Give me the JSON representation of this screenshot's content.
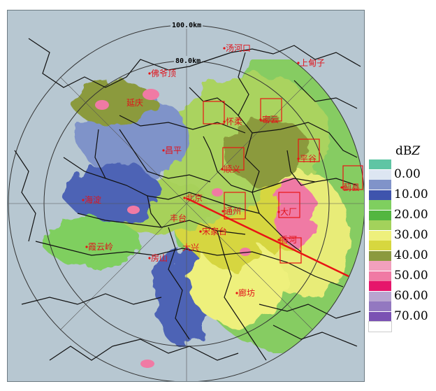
{
  "range_rings": {
    "label_100": "100.0km",
    "label_80": "80.0km"
  },
  "places": [
    {
      "name": "汤河口"
    },
    {
      "name": "上甸子"
    },
    {
      "name": "佛爷顶"
    },
    {
      "name": "延庆"
    },
    {
      "name": "怀柔"
    },
    {
      "name": "密云"
    },
    {
      "name": "顺义"
    },
    {
      "name": "平谷"
    },
    {
      "name": "昌平"
    },
    {
      "name": "蓟县"
    },
    {
      "name": "海淀"
    },
    {
      "name": "北京"
    },
    {
      "name": "通州"
    },
    {
      "name": "大厂"
    },
    {
      "name": "丰台"
    },
    {
      "name": "朝阳"
    },
    {
      "name": "霞云岭"
    },
    {
      "name": "宋家台"
    },
    {
      "name": "香河"
    },
    {
      "name": "房山"
    },
    {
      "name": "大兴"
    },
    {
      "name": "廊坊"
    }
  ],
  "legend": {
    "title_prefix": "dB",
    "title_unit": "Z",
    "entries": [
      {
        "color": "#5fc5a4",
        "label": ""
      },
      {
        "color": "#dde6f2",
        "label": "0.00"
      },
      {
        "color": "#8093c9",
        "label": ""
      },
      {
        "color": "#3f54ad",
        "label": "10.00"
      },
      {
        "color": "#7fcf5f",
        "label": ""
      },
      {
        "color": "#53b640",
        "label": "20.00"
      },
      {
        "color": "#a3d25b",
        "label": ""
      },
      {
        "color": "#eef07c",
        "label": "30.00"
      },
      {
        "color": "#d7d73f",
        "label": ""
      },
      {
        "color": "#8b9a3e",
        "label": "40.00"
      },
      {
        "color": "#f2a0bd",
        "label": ""
      },
      {
        "color": "#f07aa4",
        "label": "50.00"
      },
      {
        "color": "#e6156b",
        "label": ""
      },
      {
        "color": "#b8a5d0",
        "label": "60.00"
      },
      {
        "color": "#9378c0",
        "label": ""
      },
      {
        "color": "#7b51b3",
        "label": "70.00"
      },
      {
        "color": "#ffffff",
        "label": ""
      }
    ]
  },
  "colors": {
    "boundary": "#111111",
    "ring": "#333333",
    "section_line": "#e81414",
    "marker_box": "#e81414"
  }
}
